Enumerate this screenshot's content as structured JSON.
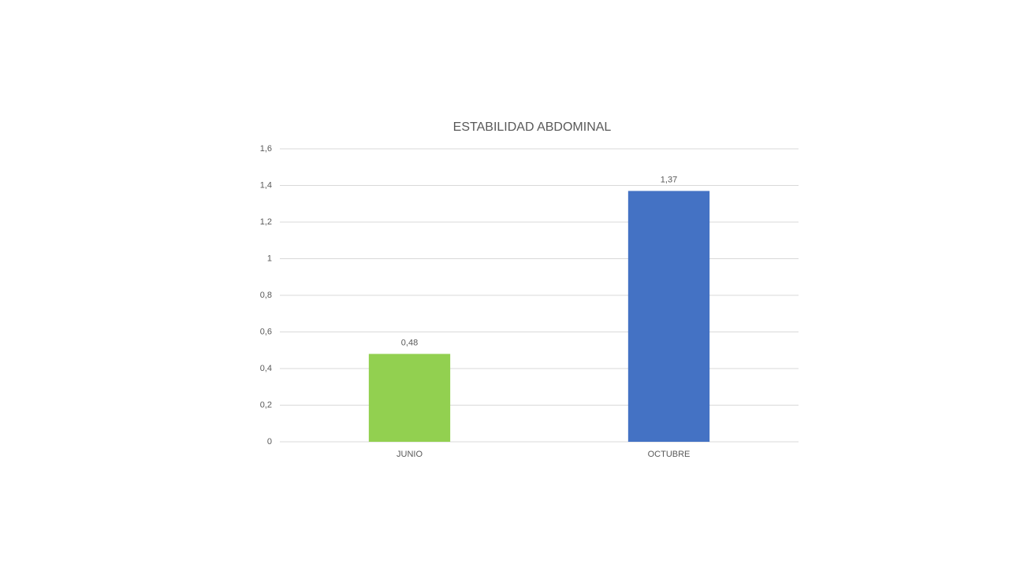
{
  "chart_data": {
    "type": "bar",
    "title": "ESTABILIDAD ABDOMINAL",
    "categories": [
      "JUNIO",
      "OCTUBRE"
    ],
    "values": [
      0.48,
      1.37
    ],
    "value_labels": [
      "0,48",
      "1,37"
    ],
    "colors": [
      "#92d050",
      "#4472c4"
    ],
    "ylim": [
      0,
      1.6
    ],
    "yticks": [
      0,
      {
        "value": 0.2,
        "label": "0,2"
      },
      {
        "value": 0.4,
        "label": "0,4"
      },
      {
        "value": 0.6,
        "label": "0,6"
      },
      {
        "value": 0.8,
        "label": "0,8"
      },
      1,
      {
        "value": 1.2,
        "label": "1,2"
      },
      {
        "value": 1.4,
        "label": "1,4"
      },
      {
        "value": 1.6,
        "label": "1,6"
      }
    ],
    "grid": true
  }
}
